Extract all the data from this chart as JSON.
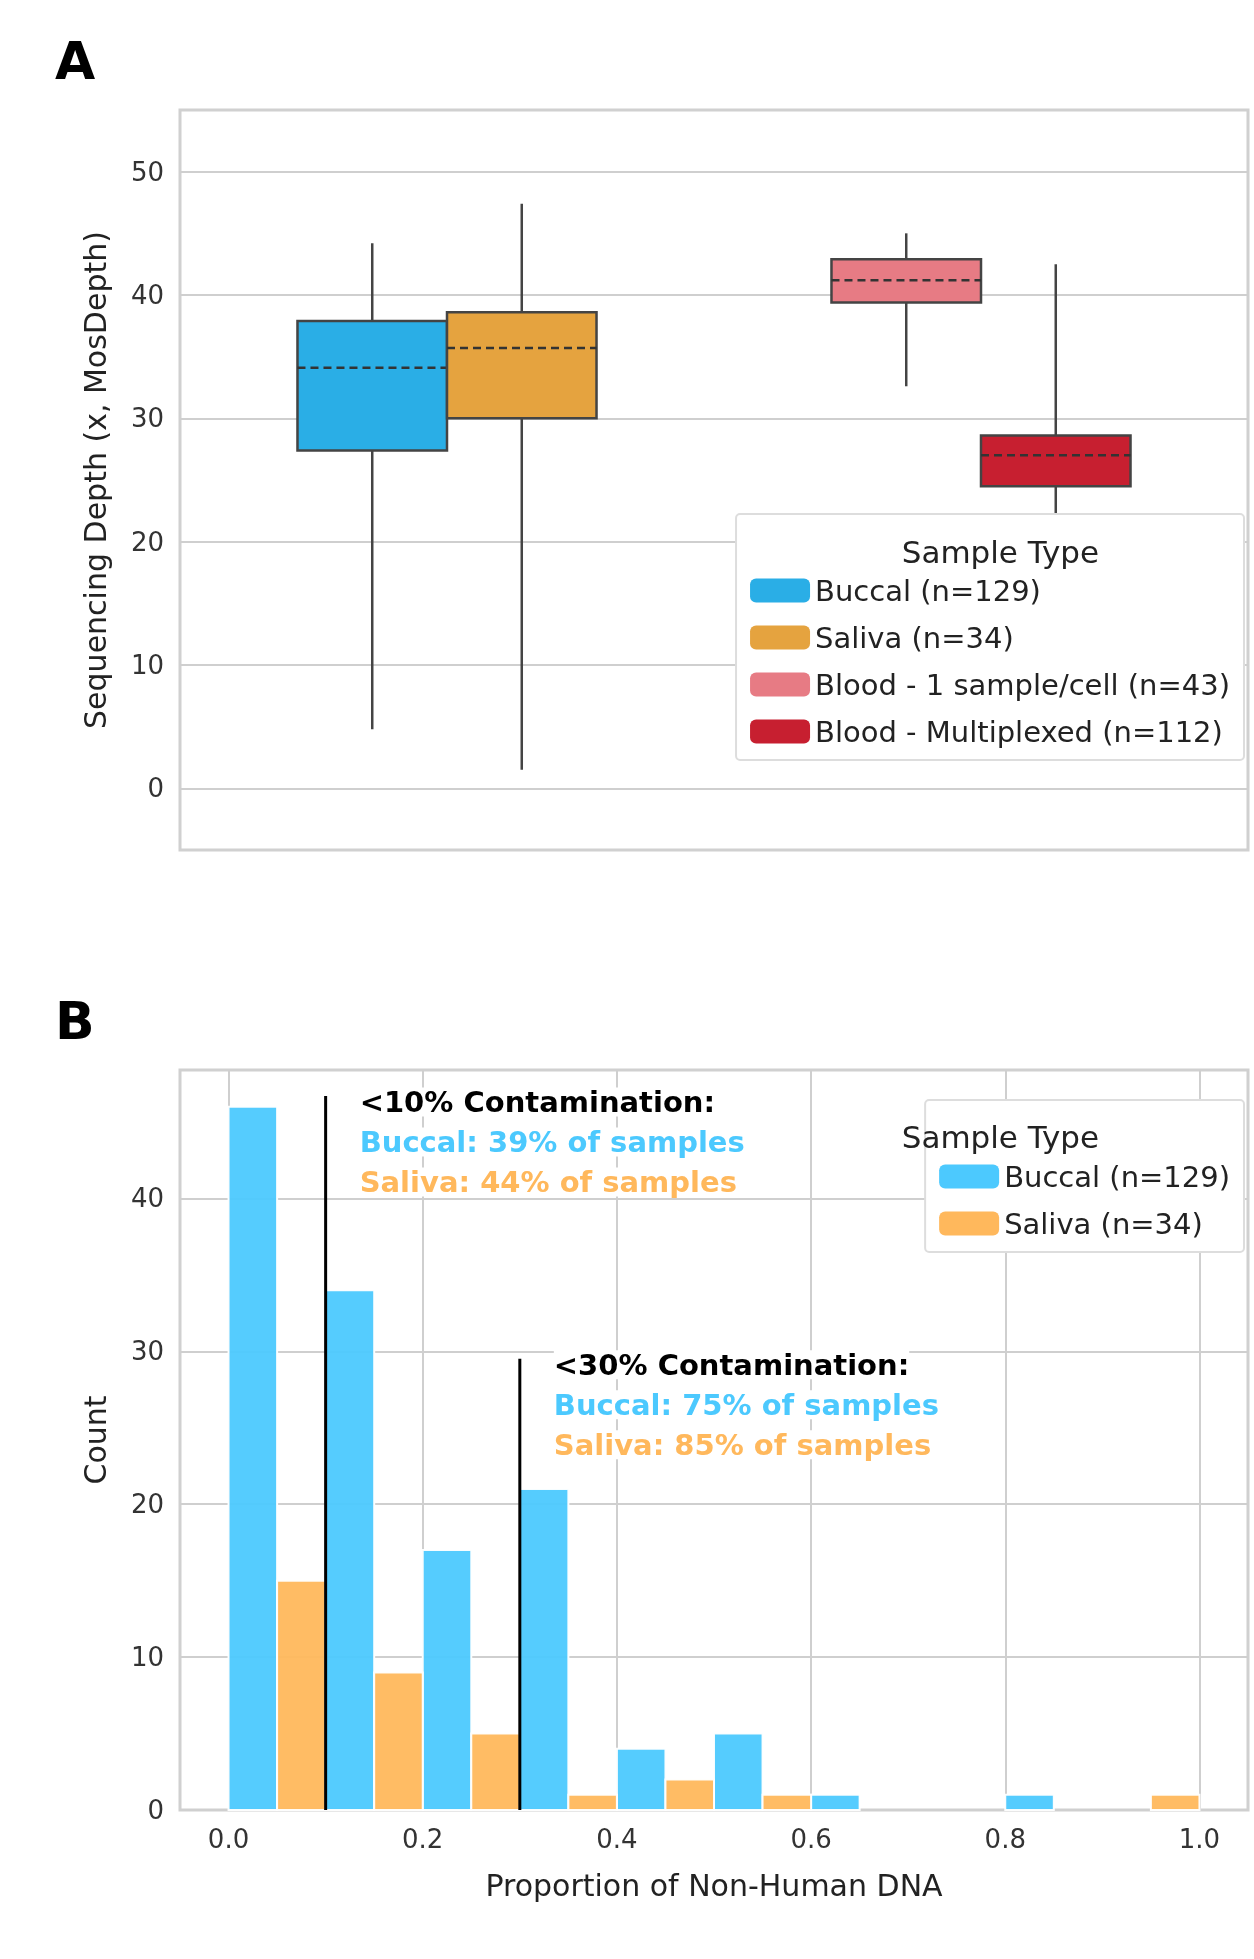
{
  "chart_data": [
    {
      "type": "box",
      "title": "A",
      "ylabel": "Sequencing Depth (x, MosDepth)",
      "categories": [
        null,
        null
      ],
      "ylim": [
        -5,
        55
      ],
      "yticks": [
        0,
        10,
        20,
        30,
        40,
        50
      ],
      "grid": "y",
      "legend": "bottom right",
      "legend_title": "Sample Type",
      "line_style": "dashed",
      "series": [
        {
          "name": "Buccal (n=129)",
          "color": "#2aaee6",
          "boxes": [
            {
              "low": 4.8,
              "q1": 27.4,
              "median": 34.1,
              "q3": 37.9,
              "high": 44.2
            },
            null
          ]
        },
        {
          "name": "Saliva (n=34)",
          "color": "#e5a33f",
          "boxes": [
            {
              "low": 1.5,
              "q1": 30.0,
              "median": 35.7,
              "q3": 38.6,
              "high": 47.4
            },
            null
          ]
        },
        {
          "name": "Blood - 1 sample/cell (n=43)",
          "color": "#e77b84",
          "boxes": [
            null,
            {
              "low": 32.6,
              "q1": 39.4,
              "median": 41.2,
              "q3": 42.9,
              "high": 45.0
            }
          ]
        },
        {
          "name": "Blood - Multiplexed (n=112)",
          "color": "#c71f30",
          "boxes": [
            null,
            {
              "low": 17.2,
              "q1": 24.5,
              "median": 27.0,
              "q3": 28.6,
              "high": 42.5
            }
          ]
        }
      ]
    },
    {
      "type": "histogram",
      "title": "B",
      "xlabel": "Proportion of Non-Human DNA",
      "ylabel": "Count",
      "bins": [
        0,
        0.1,
        0.2,
        0.3,
        0.4,
        0.5,
        0.6,
        0.7,
        0.8,
        0.9,
        1.0
      ],
      "xlim": [
        -0.05,
        1.05
      ],
      "ylim": [
        0,
        48.4
      ],
      "xticks": [
        {
          "value": 0,
          "label": "0.0"
        },
        {
          "value": 0.2,
          "label": "0.2"
        },
        {
          "value": 0.4,
          "label": "0.4"
        },
        {
          "value": 0.6,
          "label": "0.6"
        },
        {
          "value": 0.8,
          "label": "0.8"
        },
        {
          "value": 1.0,
          "label": "1.0"
        }
      ],
      "yticks": [
        0,
        10,
        20,
        30,
        40
      ],
      "grid": true,
      "legend": "top right",
      "legend_title": "Sample Type",
      "series": [
        {
          "name": "Buccal (n=129)",
          "color": "#4cc9fe",
          "values": [
            46,
            34,
            17,
            21,
            4,
            5,
            1,
            0,
            1,
            0
          ]
        },
        {
          "name": "Saliva (n=34)",
          "color": "#ffb85c",
          "values": [
            15,
            9,
            5,
            1,
            2,
            1,
            0,
            0,
            0,
            1
          ]
        }
      ],
      "ref_lines": [
        {
          "axis": "x",
          "value": 0.1,
          "label": "<10% Contamination:",
          "color": "#000000"
        },
        {
          "axis": "x",
          "value": 0.3,
          "label": "<30% Contamination:",
          "color": "#000000"
        }
      ],
      "annotations": [
        "Buccal: 39% of samples",
        "Saliva: 44% of samples",
        "Buccal: 75% of samples",
        "Saliva: 85% of samples"
      ]
    }
  ]
}
